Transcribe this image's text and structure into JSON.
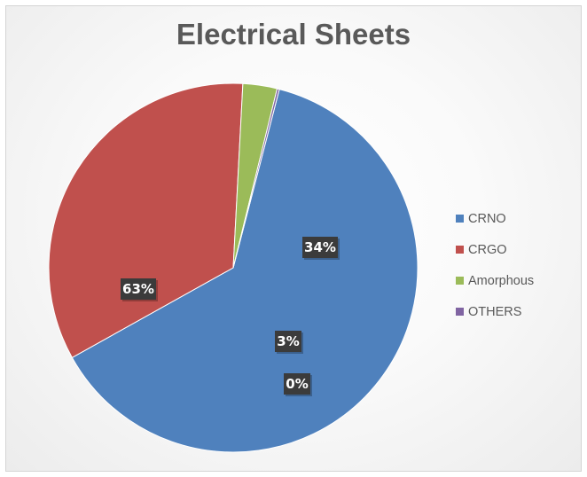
{
  "chart": {
    "title": "Electrical Sheets"
  },
  "chart_data": {
    "type": "pie",
    "title": "Electrical Sheets",
    "categories": [
      "CRNO",
      "CRGO",
      "Amorphous",
      "OTHERS"
    ],
    "values": [
      63,
      34,
      3,
      0.2
    ],
    "data_labels": [
      "63%",
      "34%",
      "3%",
      "0%"
    ],
    "colors": [
      "#4f81bd",
      "#c0504d",
      "#9bbb59",
      "#8064a2"
    ],
    "legend_position": "right",
    "start_angle_deg": 14.5,
    "direction": "clockwise"
  },
  "legend": {
    "items": [
      {
        "label": "CRNO",
        "color": "#4f81bd"
      },
      {
        "label": "CRGO",
        "color": "#c0504d"
      },
      {
        "label": "Amorphous",
        "color": "#9bbb59"
      },
      {
        "label": "OTHERS",
        "color": "#8064a2"
      }
    ]
  }
}
